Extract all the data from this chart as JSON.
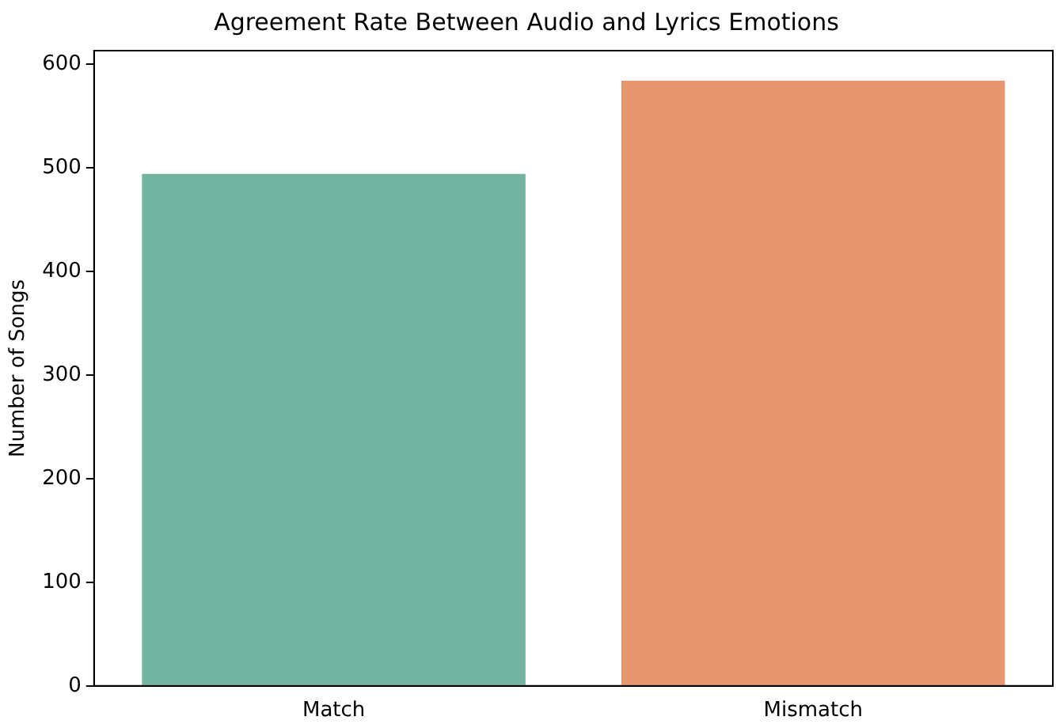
{
  "chart_data": {
    "type": "bar",
    "title": "Agreement Rate Between Audio and Lyrics Emotions",
    "ylabel": "Number of Songs",
    "categories": [
      "Match",
      "Mismatch"
    ],
    "values": [
      494,
      584
    ],
    "colors": [
      "#72b4a0",
      "#e8966f"
    ],
    "ylim": [
      0,
      613
    ],
    "yticks": [
      0,
      100,
      200,
      300,
      400,
      500,
      600
    ],
    "grid": false,
    "legend": false
  }
}
